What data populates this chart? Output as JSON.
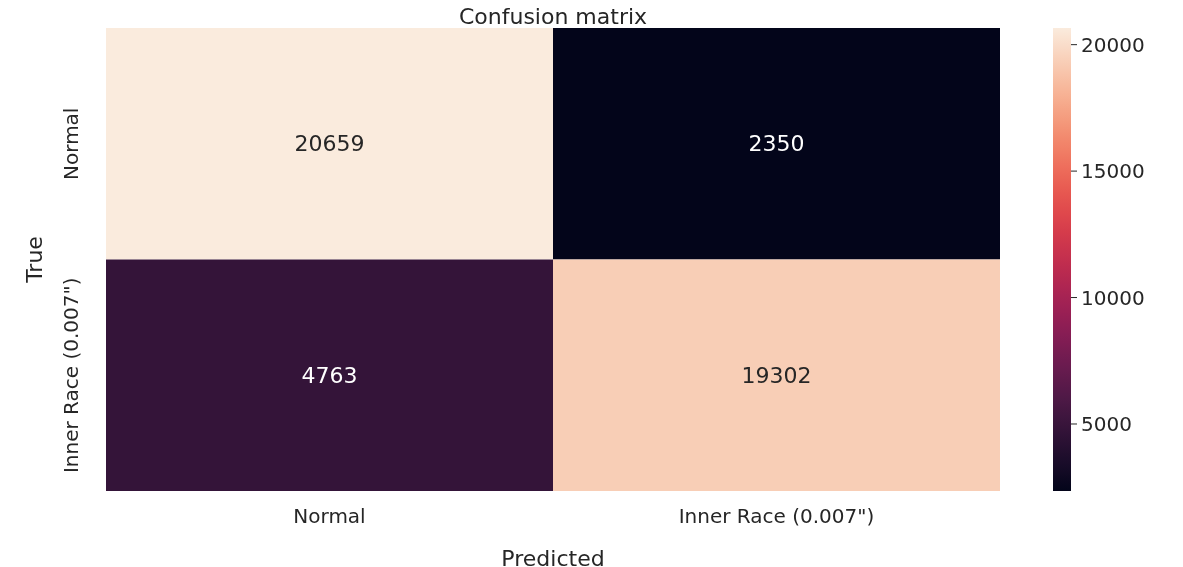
{
  "chart_data": {
    "type": "heatmap",
    "title": "Confusion matrix",
    "xlabel": "Predicted",
    "ylabel": "True",
    "categories": [
      "Normal",
      "Inner Race (0.007\")"
    ],
    "y_categories": [
      "Normal",
      "Inner Race (0.007\")"
    ],
    "cells": [
      [
        20659,
        2350
      ],
      [
        4763,
        19302
      ]
    ],
    "clim": [
      2350,
      20659
    ],
    "cticks": [
      5000,
      10000,
      15000,
      20000
    ],
    "data_labels": true
  }
}
